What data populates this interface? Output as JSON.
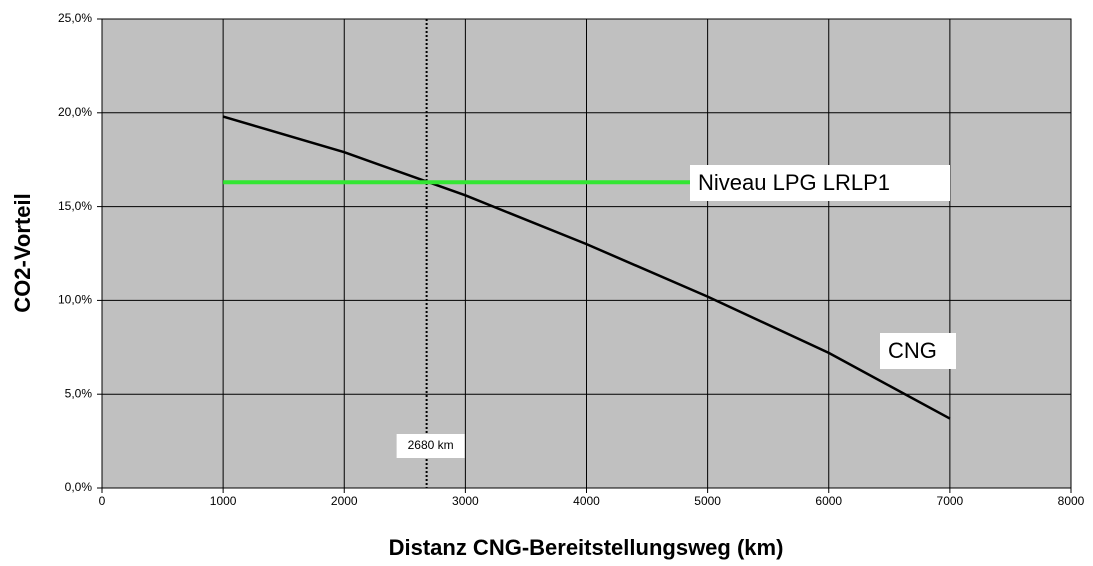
{
  "chart_data": {
    "type": "line",
    "xlabel": "Distanz CNG-Bereitstellungsweg (km)",
    "ylabel": "CO2-Vorteil",
    "xlim": [
      0,
      8000
    ],
    "xticks": [
      0,
      1000,
      2000,
      3000,
      4000,
      5000,
      6000,
      7000,
      8000
    ],
    "ylim": [
      0,
      25
    ],
    "yticks": [
      {
        "value": 0,
        "label": "0,0%"
      },
      {
        "value": 5,
        "label": "5,0%"
      },
      {
        "value": 10,
        "label": "10,0%"
      },
      {
        "value": 15,
        "label": "15,0%"
      },
      {
        "value": 20,
        "label": "20,0%"
      },
      {
        "value": 25,
        "label": "25,0%"
      }
    ],
    "grid": true,
    "background": "#c0c0c0",
    "series": [
      {
        "name": "CNG",
        "color": "#000000",
        "x": [
          1000,
          2000,
          3000,
          4000,
          5000,
          6000,
          7000
        ],
        "values": [
          19.8,
          17.9,
          15.6,
          13.0,
          10.2,
          7.2,
          3.7
        ]
      },
      {
        "name": "Niveau LPG LRLP1",
        "color": "#33e633",
        "x": [
          1000,
          7000
        ],
        "values": [
          16.3,
          16.3
        ]
      }
    ],
    "vline": {
      "value": 2680,
      "label": "2680 km"
    }
  }
}
